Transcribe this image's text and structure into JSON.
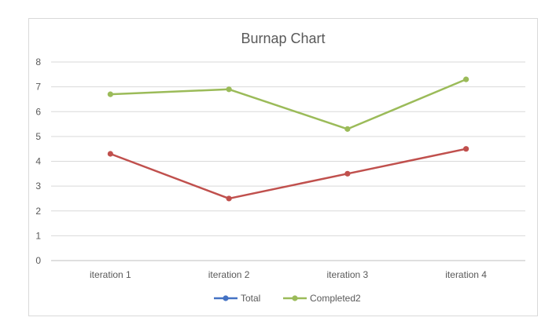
{
  "chart_data": {
    "type": "line",
    "title": "Burnap Chart",
    "categories": [
      "iteration 1",
      "iteration 2",
      "iteration 3",
      "iteration 4"
    ],
    "ylim": [
      0,
      8
    ],
    "yticks": [
      "0",
      "1",
      "2",
      "3",
      "4",
      "5",
      "6",
      "7",
      "8"
    ],
    "grid": true,
    "legend_position": "bottom",
    "series": [
      {
        "name": "Total",
        "values": [
          4.3,
          2.5,
          3.5,
          4.5
        ],
        "color": "#4472c4",
        "line_color": "#c0504d"
      },
      {
        "name": "Completed2",
        "values": [
          6.7,
          6.9,
          5.3,
          7.3
        ],
        "color": "#9bbb59"
      }
    ]
  }
}
